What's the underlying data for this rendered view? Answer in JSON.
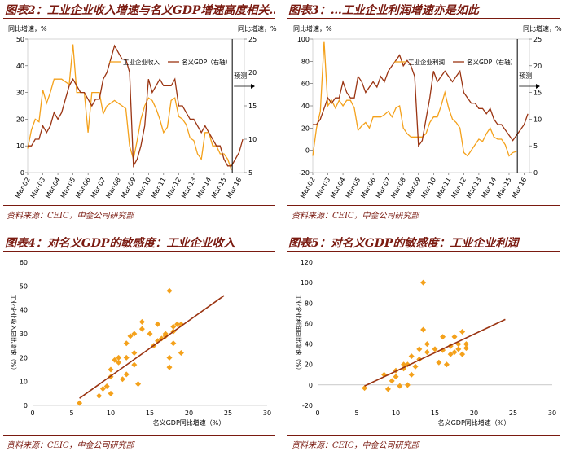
{
  "figures": [
    {
      "title": "图表2：工业企业收入增速与名义GDP增速高度相关…",
      "source": "资料来源：CEIC，中金公司研究部",
      "chart_data": {
        "type": "line",
        "left_axis_title": "同比增速，%",
        "right_axis_title": "同比增速，%",
        "forecast_label": "预测",
        "x_ticks": [
          "Mar-02",
          "Mar-03",
          "Mar-04",
          "Mar-05",
          "Mar-06",
          "Mar-07",
          "Mar-08",
          "Mar-09",
          "Mar-10",
          "Mar-11",
          "Mar-12",
          "Mar-13",
          "Mar-14",
          "Mar-15",
          "Mar-16"
        ],
        "ylim_left": [
          0,
          50
        ],
        "yticks_left": [
          0,
          10,
          20,
          30,
          40,
          50
        ],
        "ylim_right": [
          5,
          25
        ],
        "yticks_right": [
          5,
          10,
          15,
          20,
          25
        ],
        "series": [
          {
            "name": "工业企业收入",
            "axis": "left",
            "color": "#f4a11b",
            "x": [
              2002.0,
              2002.25,
              2002.5,
              2002.75,
              2003.0,
              2003.25,
              2003.5,
              2003.75,
              2004.0,
              2004.25,
              2004.5,
              2004.75,
              2005.0,
              2005.25,
              2005.5,
              2005.75,
              2006.0,
              2006.25,
              2006.5,
              2006.75,
              2007.0,
              2007.25,
              2007.5,
              2007.75,
              2008.0,
              2008.25,
              2008.5,
              2008.75,
              2009.0,
              2009.25,
              2009.5,
              2009.75,
              2010.0,
              2010.25,
              2010.5,
              2010.75,
              2011.0,
              2011.25,
              2011.5,
              2011.75,
              2012.0,
              2012.25,
              2012.5,
              2012.75,
              2013.0,
              2013.25,
              2013.5,
              2013.75,
              2014.0,
              2014.25,
              2014.5,
              2014.75,
              2015.0,
              2015.25,
              2015.5
            ],
            "values": [
              9,
              16,
              20,
              19,
              31,
              26,
              30,
              35,
              35,
              35,
              34,
              33,
              48,
              30,
              30,
              30,
              15,
              30,
              30,
              30,
              22,
              25,
              26,
              27,
              26,
              25,
              24,
              10,
              5,
              12,
              20,
              25,
              28,
              27,
              24,
              20,
              15,
              17,
              27,
              28,
              21,
              20,
              18,
              13,
              12,
              7,
              5,
              15,
              15,
              10,
              10,
              7,
              7,
              5,
              1
            ]
          },
          {
            "name": "名义GDP（右轴）",
            "axis": "right",
            "color": "#9a3412",
            "x": [
              2002.0,
              2002.25,
              2002.5,
              2002.75,
              2003.0,
              2003.25,
              2003.5,
              2003.75,
              2004.0,
              2004.25,
              2004.5,
              2004.75,
              2005.0,
              2005.25,
              2005.5,
              2005.75,
              2006.0,
              2006.25,
              2006.5,
              2006.75,
              2007.0,
              2007.25,
              2007.5,
              2007.75,
              2008.0,
              2008.25,
              2008.5,
              2008.75,
              2009.0,
              2009.25,
              2009.5,
              2009.75,
              2010.0,
              2010.25,
              2010.5,
              2010.75,
              2011.0,
              2011.25,
              2011.5,
              2011.75,
              2012.0,
              2012.25,
              2012.5,
              2012.75,
              2013.0,
              2013.25,
              2013.5,
              2013.75,
              2014.0,
              2014.25,
              2014.5,
              2014.75,
              2015.0,
              2015.25,
              2015.5,
              2015.75,
              2016.0,
              2016.25
            ],
            "values": [
              9,
              9,
              10,
              10,
              12,
              11,
              12,
              14,
              13,
              14,
              16,
              18,
              19,
              18,
              17,
              17,
              16,
              15,
              16,
              16,
              19,
              20,
              22,
              24,
              23,
              22,
              22,
              20,
              6,
              7,
              9,
              12,
              19,
              17,
              18,
              19,
              18,
              18,
              18,
              19,
              15,
              15,
              14,
              13,
              13,
              12,
              11,
              12,
              11,
              10,
              9,
              9,
              7,
              6,
              6,
              7,
              8,
              10
            ]
          }
        ]
      }
    },
    {
      "title": "图表3：…工业企业利润增速亦是如此",
      "source": "资料来源：CEIC，中金公司研究部",
      "chart_data": {
        "type": "line",
        "left_axis_title": "同比增速，%",
        "right_axis_title": "同比增速，%",
        "forecast_label": "预测",
        "x_ticks": [
          "Mar-02",
          "Mar-03",
          "Mar-04",
          "Mar-05",
          "Mar-06",
          "Mar-07",
          "Mar-08",
          "Mar-09",
          "Mar-10",
          "Mar-11",
          "Mar-12",
          "Mar-13",
          "Mar-14",
          "Mar-15",
          "Mar-16"
        ],
        "ylim_left": [
          -20,
          100
        ],
        "yticks_left": [
          -20,
          0,
          20,
          40,
          60,
          80,
          100
        ],
        "ylim_right": [
          0,
          25
        ],
        "yticks_right": [
          0,
          5,
          10,
          15,
          20,
          25
        ],
        "series": [
          {
            "name": "工业企业利润",
            "axis": "left",
            "color": "#f4a11b",
            "x": [
              2002.0,
              2002.25,
              2002.5,
              2002.75,
              2003.0,
              2003.25,
              2003.5,
              2003.75,
              2004.0,
              2004.25,
              2004.5,
              2004.75,
              2005.0,
              2005.25,
              2005.5,
              2005.75,
              2006.0,
              2006.25,
              2006.5,
              2006.75,
              2007.0,
              2007.25,
              2007.5,
              2007.75,
              2008.0,
              2008.25,
              2008.5,
              2008.75,
              2009.0,
              2009.25,
              2009.5,
              2009.75,
              2010.0,
              2010.25,
              2010.5,
              2010.75,
              2011.0,
              2011.25,
              2011.5,
              2011.75,
              2012.0,
              2012.25,
              2012.5,
              2012.75,
              2013.0,
              2013.25,
              2013.5,
              2013.75,
              2014.0,
              2014.25,
              2014.5,
              2014.75,
              2015.0,
              2015.25,
              2015.5
            ],
            "values": [
              -5,
              20,
              35,
              98,
              40,
              45,
              38,
              45,
              40,
              45,
              45,
              38,
              18,
              22,
              25,
              20,
              30,
              30,
              30,
              32,
              35,
              30,
              38,
              40,
              20,
              15,
              12,
              12,
              12,
              12,
              15,
              25,
              30,
              30,
              40,
              52,
              38,
              28,
              25,
              20,
              -2,
              -5,
              0,
              5,
              10,
              8,
              15,
              20,
              12,
              10,
              10,
              5,
              -5,
              -2,
              -1
            ]
          },
          {
            "name": "名义GDP（右轴）",
            "axis": "right",
            "color": "#9a3412",
            "x": [
              2002.0,
              2002.25,
              2002.5,
              2002.75,
              2003.0,
              2003.25,
              2003.5,
              2003.75,
              2004.0,
              2004.25,
              2004.5,
              2004.75,
              2005.0,
              2005.25,
              2005.5,
              2005.75,
              2006.0,
              2006.25,
              2006.5,
              2006.75,
              2007.0,
              2007.25,
              2007.5,
              2007.75,
              2008.0,
              2008.25,
              2008.5,
              2008.75,
              2009.0,
              2009.25,
              2009.5,
              2009.75,
              2010.0,
              2010.25,
              2010.5,
              2010.75,
              2011.0,
              2011.25,
              2011.5,
              2011.75,
              2012.0,
              2012.25,
              2012.5,
              2012.75,
              2013.0,
              2013.25,
              2013.5,
              2013.75,
              2014.0,
              2014.25,
              2014.5,
              2014.75,
              2015.0,
              2015.25,
              2015.5,
              2015.75,
              2016.0,
              2016.25
            ],
            "values": [
              9,
              9,
              10,
              12,
              14,
              13,
              14,
              14,
              17,
              15,
              14,
              14,
              18,
              17,
              15,
              16,
              17,
              16,
              18,
              17,
              19,
              20,
              21,
              22,
              20,
              21,
              20,
              18,
              5,
              6,
              10,
              14,
              19,
              17,
              18,
              19,
              18,
              17,
              18,
              19,
              15,
              14,
              13,
              13,
              12,
              12,
              11,
              12,
              10,
              9,
              9,
              8,
              7,
              6,
              7,
              8,
              9,
              11
            ]
          }
        ]
      }
    },
    {
      "title": "图表4：对名义GDP的敏感度：工业企业收入",
      "source": "资料来源：CEIC，中金公司研究部",
      "chart_data": {
        "type": "scatter",
        "xlabel": "名义GDP同比增速（%）",
        "ylabel": "工业企业收入同比增速（%）",
        "xlim": [
          0,
          30
        ],
        "ylim": [
          0,
          60
        ],
        "xticks": [
          0,
          5,
          10,
          15,
          20,
          25,
          30
        ],
        "yticks": [
          0,
          10,
          20,
          30,
          40,
          50,
          60
        ],
        "trendline": [
          [
            6,
            3
          ],
          [
            24.5,
            46
          ]
        ],
        "points": [
          [
            6,
            1
          ],
          [
            8.5,
            4
          ],
          [
            9,
            7
          ],
          [
            9.5,
            8
          ],
          [
            10,
            5
          ],
          [
            10,
            12
          ],
          [
            10,
            15
          ],
          [
            10.5,
            19
          ],
          [
            11,
            18
          ],
          [
            11,
            20
          ],
          [
            11.5,
            11
          ],
          [
            12,
            20
          ],
          [
            12,
            13
          ],
          [
            12,
            26
          ],
          [
            12.5,
            29
          ],
          [
            13,
            30
          ],
          [
            13,
            17
          ],
          [
            13,
            22
          ],
          [
            13.5,
            9
          ],
          [
            14,
            32
          ],
          [
            14,
            35
          ],
          [
            15,
            30
          ],
          [
            15.5,
            25
          ],
          [
            16,
            34
          ],
          [
            16,
            27
          ],
          [
            16.5,
            28
          ],
          [
            17,
            30
          ],
          [
            17,
            29
          ],
          [
            17.5,
            48
          ],
          [
            17.5,
            20
          ],
          [
            17.5,
            16
          ],
          [
            18,
            31
          ],
          [
            18,
            26
          ],
          [
            18,
            33
          ],
          [
            18.5,
            34
          ],
          [
            19,
            22
          ],
          [
            19,
            34
          ]
        ]
      }
    },
    {
      "title": "图表5：对名义GDP的敏感度：工业企业利润",
      "source": "资料来源：CEIC，中金公司研究部",
      "chart_data": {
        "type": "scatter",
        "xlabel": "名义GDP同比增速（%）",
        "ylabel": "工业企业利润同比增速（%）",
        "xlim": [
          0,
          30
        ],
        "ylim": [
          -20,
          120
        ],
        "xticks": [
          0,
          5,
          10,
          15,
          20,
          25,
          30
        ],
        "yticks": [
          -20,
          0,
          20,
          40,
          60,
          80,
          100,
          120
        ],
        "trendline": [
          [
            6,
            -1
          ],
          [
            24,
            64
          ]
        ],
        "points": [
          [
            6,
            -3
          ],
          [
            8.5,
            10
          ],
          [
            9,
            -4
          ],
          [
            9.5,
            4
          ],
          [
            10,
            8
          ],
          [
            10,
            14
          ],
          [
            10.5,
            -1
          ],
          [
            11,
            16
          ],
          [
            11,
            20
          ],
          [
            11.5,
            20
          ],
          [
            11.5,
            0
          ],
          [
            12,
            28
          ],
          [
            12,
            10
          ],
          [
            12.5,
            18
          ],
          [
            13,
            25
          ],
          [
            13,
            35
          ],
          [
            13.5,
            54
          ],
          [
            13.5,
            100
          ],
          [
            14,
            40
          ],
          [
            14,
            32
          ],
          [
            15,
            35
          ],
          [
            15.5,
            22
          ],
          [
            16,
            34
          ],
          [
            16,
            47
          ],
          [
            16.5,
            20
          ],
          [
            17,
            30
          ],
          [
            17,
            38
          ],
          [
            17.5,
            47
          ],
          [
            17.5,
            32
          ],
          [
            18,
            40
          ],
          [
            18,
            35
          ],
          [
            18.5,
            52
          ],
          [
            19,
            36
          ],
          [
            19,
            40
          ],
          [
            18.5,
            30
          ]
        ]
      }
    }
  ]
}
